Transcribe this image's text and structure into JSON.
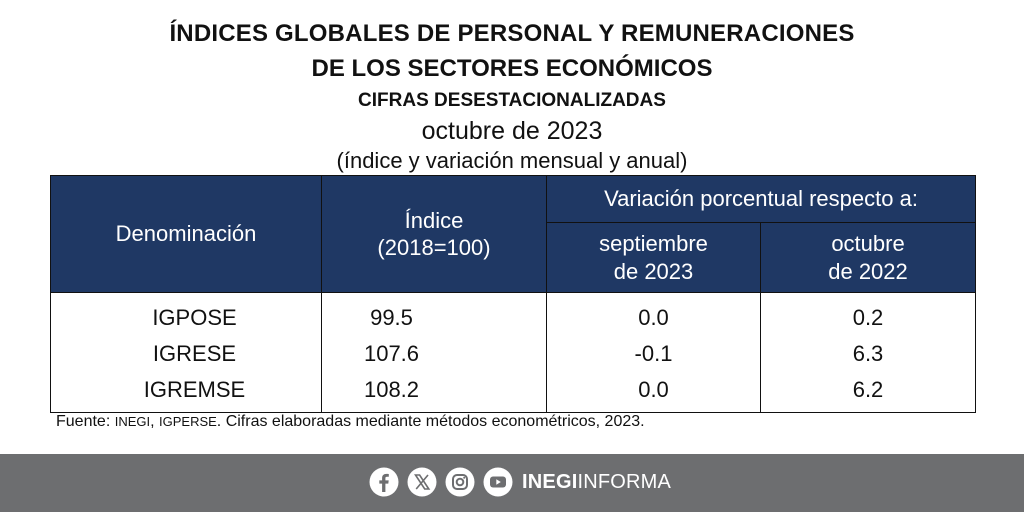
{
  "title": {
    "line1": "ÍNDICES GLOBALES DE PERSONAL Y REMUNERACIONES",
    "line2": "DE LOS SECTORES ECONÓMICOS",
    "line3": "CIFRAS DESESTACIONALIZADAS",
    "period": "octubre de 2023",
    "note": "(índice y variación mensual y anual)"
  },
  "table": {
    "header_denominacion": "Denominación",
    "header_indice_1": "Índice",
    "header_indice_2": "(2018=100)",
    "header_variacion": "Variación porcentual respecto a:",
    "header_sep_1": "septiembre",
    "header_sep_2": "de 2023",
    "header_oct_1": "octubre",
    "header_oct_2": "de 2022"
  },
  "chart_data": {
    "type": "table",
    "title": "ÍNDICES GLOBALES DE PERSONAL Y REMUNERACIONES DE LOS SECTORES ECONÓMICOS",
    "subtitle": "CIFRAS DESESTACIONALIZADAS — octubre de 2023",
    "columns": [
      "Denominación",
      "Índice (2018=100)",
      "septiembre de 2023",
      "octubre de 2022"
    ],
    "rows": [
      {
        "name": "IGPOSE",
        "index": "99.5",
        "var_month": "0.0",
        "var_year": "0.2"
      },
      {
        "name": "IGRESE",
        "index": "107.6",
        "var_month": "-0.1",
        "var_year": "6.3"
      },
      {
        "name": "IGREMSE",
        "index": "108.2",
        "var_month": "0.0",
        "var_year": "6.2"
      }
    ]
  },
  "source": {
    "prefix": "Fuente: ",
    "inegi": "INEGI",
    "sep": ", ",
    "igperse": "IGPERSE",
    "rest": ". Cifras elaboradas mediante métodos econométricos, 2023."
  },
  "footer": {
    "brand_bold": "INEGI",
    "brand_rest": "INFORMA",
    "icons": [
      "facebook-icon",
      "x-icon",
      "instagram-icon",
      "youtube-icon"
    ],
    "bg_color": "#6d6e70"
  },
  "colors": {
    "header_bg": "#1f3864",
    "header_text": "#ffffff"
  }
}
